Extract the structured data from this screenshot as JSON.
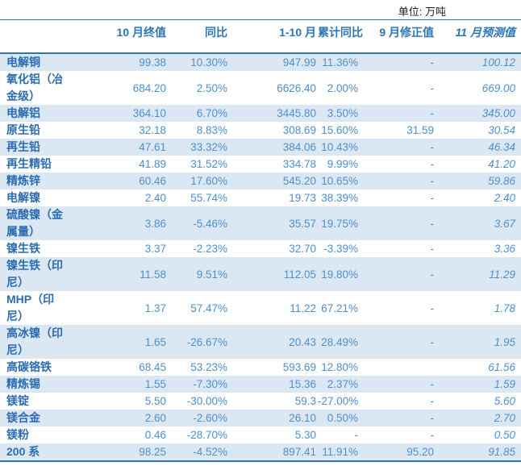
{
  "unit_label": "单位: 万吨",
  "colors": {
    "accent_line": "#2E75B6",
    "stripe_background": "#DBE8F4",
    "label_text": "#2B6CB0",
    "value_text": "#4E8FCC",
    "unit_text": "#1c1c1c"
  },
  "table": {
    "columns": [
      "",
      "10 月终值",
      "同比",
      "1-10 月",
      "累计同比",
      "9 月修正值",
      "11 月预测值"
    ],
    "rows": [
      [
        "电解铜",
        "99.38",
        "10.30%",
        "947.99",
        "11.36%",
        "-",
        "100.12"
      ],
      [
        "氧化铝（冶\n金级）",
        "684.20",
        "2.50%",
        "6626.40",
        "2.00%",
        "-",
        "669.00"
      ],
      [
        "电解铝",
        "364.10",
        "6.70%",
        "3445.80",
        "3.50%",
        "-",
        "345.00"
      ],
      [
        "原生铅",
        "32.18",
        "8.83%",
        "308.69",
        "15.60%",
        "31.59",
        "30.54"
      ],
      [
        "再生铅",
        "47.61",
        "33.32%",
        "384.06",
        "10.43%",
        "-",
        "46.34"
      ],
      [
        "再生精铅",
        "41.89",
        "31.52%",
        "334.78",
        "9.99%",
        "-",
        "41.20"
      ],
      [
        "精炼锌",
        "60.46",
        "17.60%",
        "545.20",
        "10.65%",
        "-",
        "59.86"
      ],
      [
        "电解镍",
        "2.40",
        "55.74%",
        "19.73",
        "38.39%",
        "-",
        "2.40"
      ],
      [
        "硫酸镍（金\n属量）",
        "3.86",
        "-5.46%",
        "35.57",
        "19.75%",
        "-",
        "3.67"
      ],
      [
        "镍生铁",
        "3.37",
        "-2.23%",
        "32.70",
        "-3.39%",
        "-",
        "3.36"
      ],
      [
        "镍生铁（印\n尼）",
        "11.58",
        "9.51%",
        "112.05",
        "19.80%",
        "-",
        "11.29"
      ],
      [
        "MHP（印\n尼）",
        "1.37",
        "57.47%",
        "11.22",
        "67.21%",
        "-",
        "1.78"
      ],
      [
        "高冰镍（印\n尼）",
        "1.65",
        "-26.67%",
        "20.43",
        "28.49%",
        "-",
        "1.95"
      ],
      [
        "高碳铬铁",
        "68.45",
        "53.23%",
        "593.69",
        "12.80%",
        "",
        "61.56"
      ],
      [
        "精炼锡",
        "1.55",
        "-7.30%",
        "15.36",
        "2.37%",
        "-",
        "1.59"
      ],
      [
        "镁锭",
        "5.50",
        "-30.00%",
        "59.3",
        "-27.00%",
        "-",
        "5.60"
      ],
      [
        "镁合金",
        "2.60",
        "-2.60%",
        "26.10",
        "0.50%",
        "-",
        "2.70"
      ],
      [
        "镁粉",
        "0.46",
        "-28.70%",
        "5.30",
        "-",
        "-",
        "0.50"
      ],
      [
        "200 系",
        "98.25",
        "-4.52%",
        "897.41",
        "11.91%",
        "95.20",
        "91.85"
      ]
    ]
  }
}
